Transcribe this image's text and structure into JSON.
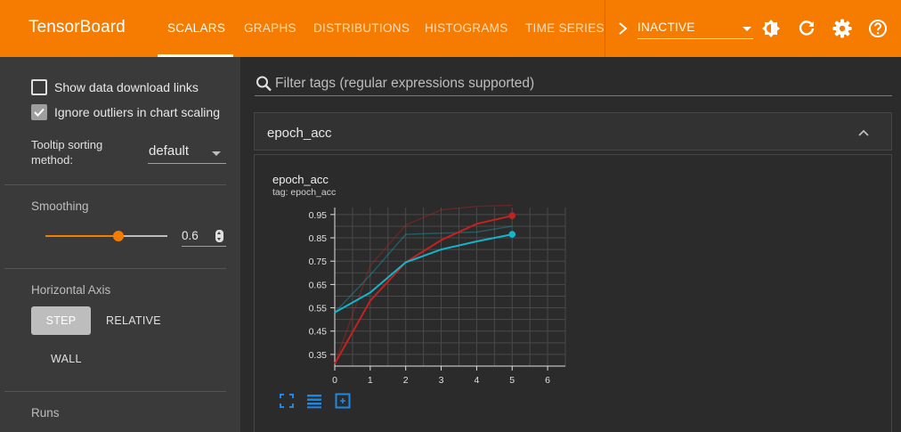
{
  "app": {
    "title": "TensorBoard"
  },
  "nav": {
    "tabs": [
      {
        "label": "SCALARS",
        "active": true
      },
      {
        "label": "GRAPHS",
        "active": false
      },
      {
        "label": "DISTRIBUTIONS",
        "active": false
      },
      {
        "label": "HISTOGRAMS",
        "active": false
      },
      {
        "label": "TIME SERIES",
        "active": false
      }
    ],
    "status_select": {
      "value": "INACTIVE"
    },
    "icons": [
      "chevron-right-icon",
      "theme-toggle-icon",
      "refresh-icon",
      "settings-icon",
      "help-icon"
    ]
  },
  "sidebar": {
    "show_download_links": {
      "label": "Show data download links",
      "checked": false
    },
    "ignore_outliers": {
      "label": "Ignore outliers in chart scaling",
      "checked": true
    },
    "tooltip_sorting": {
      "label_line1": "Tooltip sorting",
      "label_line2": "method:",
      "value": "default"
    },
    "smoothing": {
      "label": "Smoothing",
      "value": "0.6",
      "fraction": 0.6
    },
    "horizontal_axis": {
      "label": "Horizontal Axis",
      "options": [
        "STEP",
        "RELATIVE",
        "WALL"
      ],
      "selected": "STEP"
    },
    "runs": {
      "label": "Runs"
    }
  },
  "main": {
    "filter": {
      "placeholder": "Filter tags (regular expressions supported)"
    },
    "group": {
      "title": "epoch_acc"
    },
    "card": {
      "title": "epoch_acc",
      "tag": "tag: epoch_acc",
      "buttons": [
        "fullscreen-icon",
        "toggle-log-scale-icon",
        "fit-domain-icon"
      ]
    }
  },
  "colors": {
    "header": "#f57c00",
    "accent": "#f57c00",
    "series_red": "#c5221f",
    "series_blue": "#12b5cb"
  },
  "chart_data": {
    "type": "line",
    "title": "epoch_acc",
    "xlabel": "",
    "ylabel": "",
    "x_ticks": [
      "0",
      "1",
      "2",
      "3",
      "4",
      "5",
      "6"
    ],
    "y_ticks": [
      "0.35",
      "0.45",
      "0.55",
      "0.65",
      "0.75",
      "0.85",
      "0.95"
    ],
    "xlim": [
      0,
      6.5
    ],
    "ylim": [
      0.3,
      0.98
    ],
    "grid": true,
    "series": [
      {
        "color": "#c5221f",
        "x": [
          0,
          1,
          2,
          3,
          4,
          5
        ],
        "smoothed": [
          0.31,
          0.58,
          0.745,
          0.84,
          0.91,
          0.945
        ],
        "raw": [
          0.31,
          0.73,
          0.905,
          0.97,
          0.985,
          0.99
        ]
      },
      {
        "color": "#12b5cb",
        "x": [
          0,
          1,
          2,
          3,
          4,
          5
        ],
        "smoothed": [
          0.53,
          0.615,
          0.745,
          0.8,
          0.835,
          0.865
        ],
        "raw": [
          0.53,
          0.69,
          0.865,
          0.87,
          0.875,
          0.9
        ]
      }
    ]
  }
}
